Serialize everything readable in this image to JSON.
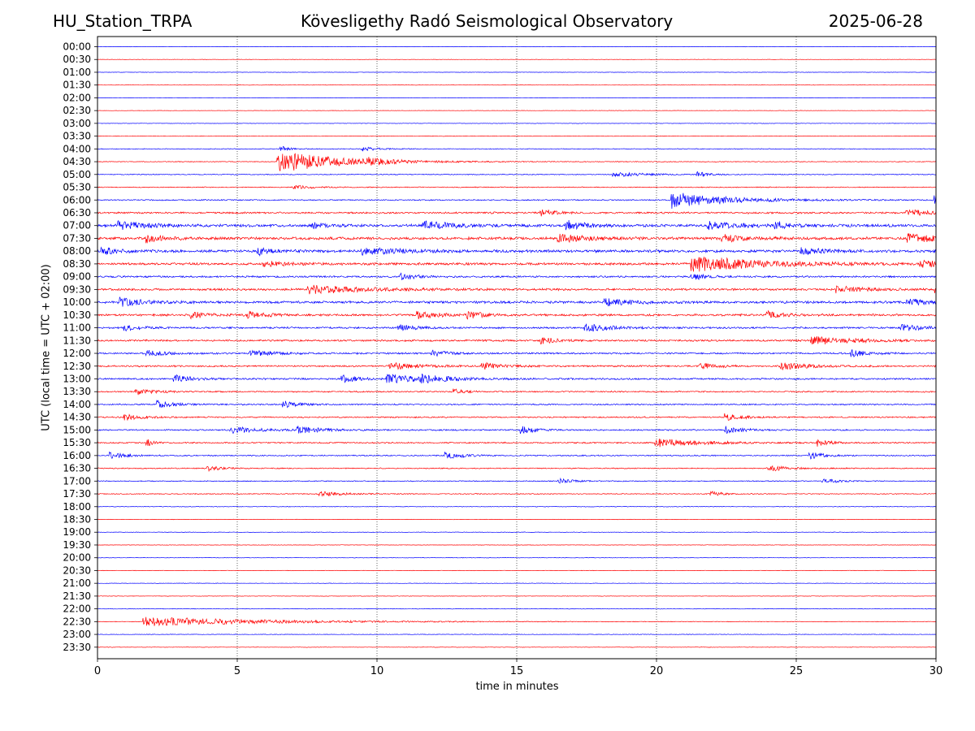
{
  "header": {
    "station": "HU_Station_TRPA",
    "observatory": "Kövesligethy Radó Seismological Observatory",
    "date": "2025-06-28"
  },
  "chart_data": {
    "type": "line",
    "title": "Kövesligethy Radó Seismological Observatory",
    "xlabel": "time in minutes",
    "ylabel": "UTC (local time = UTC + 02:00)",
    "xlim": [
      0,
      30
    ],
    "x_ticks": [
      0,
      5,
      10,
      15,
      20,
      25,
      30
    ],
    "grid": "vertical dotted at 5-minute intervals",
    "colors": {
      "even_rows": "#0000ff",
      "odd_rows": "#ff0000"
    },
    "rows": [
      {
        "label": "00:00",
        "noise": 0.25,
        "events": []
      },
      {
        "label": "00:30",
        "noise": 0.25,
        "events": []
      },
      {
        "label": "01:00",
        "noise": 0.25,
        "events": []
      },
      {
        "label": "01:30",
        "noise": 0.25,
        "events": []
      },
      {
        "label": "02:00",
        "noise": 0.25,
        "events": []
      },
      {
        "label": "02:30",
        "noise": 0.25,
        "events": []
      },
      {
        "label": "03:00",
        "noise": 0.3,
        "events": []
      },
      {
        "label": "03:30",
        "noise": 0.3,
        "events": []
      },
      {
        "label": "04:00",
        "noise": 0.5,
        "events": [
          [
            9.5,
            2.5,
            0.5
          ],
          [
            6.6,
            3,
            0.3
          ]
        ]
      },
      {
        "label": "04:30",
        "noise": 0.5,
        "events": [
          [
            6.5,
            14,
            2.0
          ],
          [
            9.7,
            3,
            0.6
          ]
        ]
      },
      {
        "label": "05:00",
        "noise": 0.6,
        "events": [
          [
            18.5,
            3,
            1.0
          ],
          [
            21.5,
            3,
            0.4
          ]
        ]
      },
      {
        "label": "05:30",
        "noise": 0.6,
        "events": [
          [
            7.0,
            2,
            0.8
          ]
        ]
      },
      {
        "label": "06:00",
        "noise": 0.8,
        "events": [
          [
            20.6,
            10,
            1.8
          ],
          [
            30,
            6,
            0.5
          ]
        ]
      },
      {
        "label": "06:30",
        "noise": 1.2,
        "events": [
          [
            15.9,
            5,
            0.4
          ],
          [
            29,
            4,
            0.8
          ]
        ]
      },
      {
        "label": "07:00",
        "noise": 1.8,
        "events": [
          [
            0.8,
            5,
            1.0
          ],
          [
            7.7,
            4,
            0.4
          ],
          [
            11.7,
            5,
            1.0
          ],
          [
            16.8,
            6,
            0.6
          ],
          [
            21.9,
            5,
            1.0
          ],
          [
            24.2,
            5,
            0.5
          ]
        ]
      },
      {
        "label": "07:30",
        "noise": 1.8,
        "events": [
          [
            1.8,
            5,
            0.6
          ],
          [
            16.5,
            5,
            1.0
          ],
          [
            22.4,
            4,
            0.8
          ],
          [
            29.0,
            5,
            1.2
          ]
        ]
      },
      {
        "label": "08:00",
        "noise": 1.8,
        "events": [
          [
            0.2,
            4,
            0.5
          ],
          [
            5.8,
            4,
            0.5
          ],
          [
            9.5,
            4,
            1.5
          ],
          [
            25.2,
            4,
            0.8
          ]
        ]
      },
      {
        "label": "08:30",
        "noise": 1.6,
        "events": [
          [
            21.3,
            10,
            2.2
          ],
          [
            6.0,
            3,
            0.8
          ],
          [
            29.5,
            4,
            1.0
          ]
        ]
      },
      {
        "label": "09:00",
        "noise": 1.2,
        "events": [
          [
            10.9,
            4,
            0.5
          ],
          [
            21.3,
            4,
            0.5
          ]
        ]
      },
      {
        "label": "09:30",
        "noise": 1.4,
        "events": [
          [
            7.6,
            5,
            2.0
          ],
          [
            26.5,
            4,
            0.8
          ],
          [
            30,
            4,
            0.3
          ]
        ]
      },
      {
        "label": "10:00",
        "noise": 1.6,
        "events": [
          [
            0.8,
            5,
            0.8
          ],
          [
            18.2,
            4,
            1.0
          ],
          [
            29,
            4,
            0.8
          ]
        ]
      },
      {
        "label": "10:30",
        "noise": 1.4,
        "events": [
          [
            3.4,
            4,
            0.6
          ],
          [
            5.4,
            4,
            0.6
          ],
          [
            11.5,
            4,
            0.8
          ],
          [
            13.3,
            4,
            0.5
          ],
          [
            24.0,
            4,
            0.6
          ]
        ]
      },
      {
        "label": "11:00",
        "noise": 1.2,
        "events": [
          [
            1.0,
            4,
            0.5
          ],
          [
            10.8,
            4,
            0.5
          ],
          [
            17.5,
            4,
            1.0
          ],
          [
            28.8,
            4,
            0.8
          ]
        ]
      },
      {
        "label": "11:30",
        "noise": 1.2,
        "events": [
          [
            25.6,
            5,
            1.5
          ],
          [
            15.9,
            4,
            0.5
          ]
        ]
      },
      {
        "label": "12:00",
        "noise": 1.1,
        "events": [
          [
            1.8,
            4,
            0.6
          ],
          [
            5.5,
            4,
            0.8
          ],
          [
            12.0,
            4,
            0.5
          ],
          [
            27.0,
            4,
            0.6
          ]
        ]
      },
      {
        "label": "12:30",
        "noise": 1.1,
        "events": [
          [
            10.5,
            4,
            1.0
          ],
          [
            13.8,
            4,
            0.6
          ],
          [
            21.6,
            4,
            0.5
          ],
          [
            24.5,
            4,
            1.0
          ]
        ]
      },
      {
        "label": "13:00",
        "noise": 1.1,
        "events": [
          [
            2.8,
            4,
            0.6
          ],
          [
            8.8,
            4,
            0.6
          ],
          [
            10.4,
            5,
            1.4
          ],
          [
            11.6,
            4,
            0.8
          ]
        ]
      },
      {
        "label": "13:30",
        "noise": 0.9,
        "events": [
          [
            1.4,
            4,
            0.6
          ],
          [
            12.8,
            3,
            0.3
          ]
        ]
      },
      {
        "label": "14:00",
        "noise": 0.9,
        "events": [
          [
            2.2,
            4,
            0.6
          ],
          [
            6.7,
            4,
            0.5
          ]
        ]
      },
      {
        "label": "14:30",
        "noise": 0.9,
        "events": [
          [
            1.0,
            4,
            0.6
          ],
          [
            22.5,
            4,
            0.6
          ]
        ]
      },
      {
        "label": "15:00",
        "noise": 0.9,
        "events": [
          [
            4.8,
            4,
            1.0
          ],
          [
            7.2,
            4,
            0.8
          ],
          [
            15.2,
            4,
            0.5
          ],
          [
            22.5,
            4,
            0.6
          ]
        ]
      },
      {
        "label": "15:30",
        "noise": 0.9,
        "events": [
          [
            1.8,
            4,
            0.2
          ],
          [
            20.0,
            5,
            1.5
          ],
          [
            25.8,
            4,
            0.4
          ]
        ]
      },
      {
        "label": "16:00",
        "noise": 0.8,
        "events": [
          [
            0.5,
            4,
            0.5
          ],
          [
            12.5,
            4,
            0.6
          ],
          [
            25.5,
            4,
            0.5
          ]
        ]
      },
      {
        "label": "16:30",
        "noise": 0.7,
        "events": [
          [
            4.0,
            3,
            0.5
          ],
          [
            24.0,
            4,
            0.6
          ]
        ]
      },
      {
        "label": "17:00",
        "noise": 0.6,
        "events": [
          [
            16.5,
            3,
            0.5
          ],
          [
            26.0,
            3,
            0.5
          ]
        ]
      },
      {
        "label": "17:30",
        "noise": 0.6,
        "events": [
          [
            8.0,
            3,
            0.8
          ],
          [
            22.0,
            3,
            0.4
          ]
        ]
      },
      {
        "label": "18:00",
        "noise": 0.4,
        "events": []
      },
      {
        "label": "18:30",
        "noise": 0.3,
        "events": []
      },
      {
        "label": "19:00",
        "noise": 0.35,
        "events": []
      },
      {
        "label": "19:30",
        "noise": 0.3,
        "events": []
      },
      {
        "label": "20:00",
        "noise": 0.3,
        "events": []
      },
      {
        "label": "20:30",
        "noise": 0.3,
        "events": []
      },
      {
        "label": "21:00",
        "noise": 0.3,
        "events": []
      },
      {
        "label": "21:30",
        "noise": 0.3,
        "events": []
      },
      {
        "label": "22:00",
        "noise": 0.35,
        "events": []
      },
      {
        "label": "22:30",
        "noise": 0.35,
        "events": [
          [
            1.7,
            6,
            4.0
          ]
        ]
      },
      {
        "label": "23:00",
        "noise": 0.35,
        "events": []
      },
      {
        "label": "23:30",
        "noise": 0.3,
        "events": []
      }
    ]
  }
}
